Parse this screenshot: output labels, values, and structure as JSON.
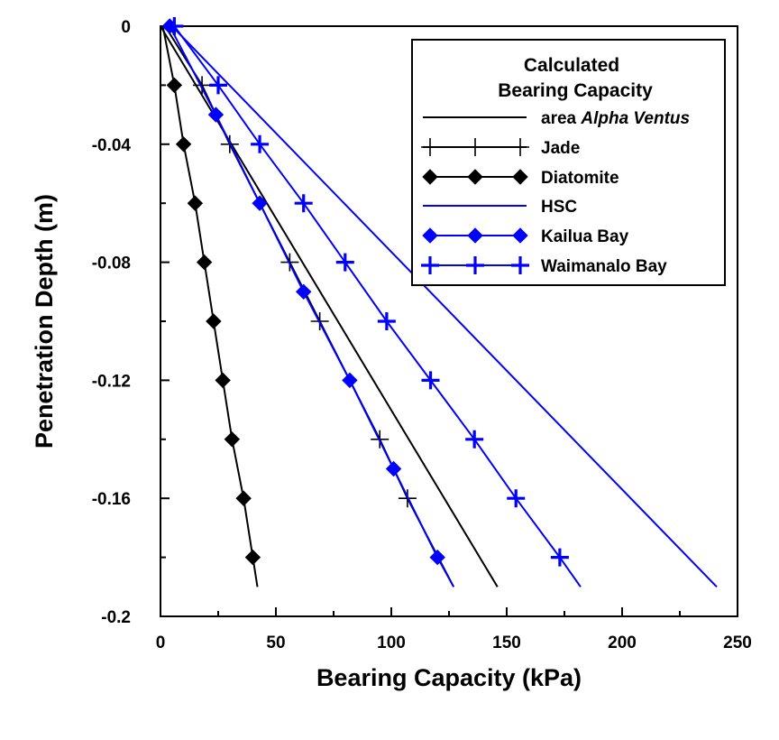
{
  "chart_data": {
    "type": "line",
    "xlabel": "Bearing Capacity (kPa)",
    "ylabel": "Penetration Depth (m)",
    "xlim": [
      0,
      250
    ],
    "ylim": [
      -0.2,
      0
    ],
    "x_ticks": [
      0,
      50,
      100,
      150,
      200,
      250
    ],
    "y_ticks": [
      0,
      -0.04,
      -0.08,
      -0.12,
      -0.16,
      -0.2
    ],
    "x_tick_labels": [
      "0",
      "50",
      "100",
      "150",
      "200",
      "250"
    ],
    "y_tick_labels": [
      "0",
      "-0.04",
      "-0.08",
      "-0.12",
      "-0.16",
      "-0.2"
    ],
    "legend": {
      "title_line1": "Calculated",
      "title_line2": "Bearing Capacity",
      "position": "top-right"
    },
    "series": [
      {
        "name": "area Alpha Ventus",
        "name_prefix": "area ",
        "name_emph": "Alpha Ventus",
        "color": "#000000",
        "marker": "none",
        "x": [
          0,
          146
        ],
        "y": [
          0,
          -0.19
        ]
      },
      {
        "name": "Jade",
        "color": "#000000",
        "marker": "plus",
        "x": [
          2,
          18,
          30,
          56,
          69,
          95,
          107,
          127
        ],
        "y": [
          0,
          -0.02,
          -0.04,
          -0.08,
          -0.1,
          -0.14,
          -0.16,
          -0.19
        ],
        "marked": [
          false,
          true,
          true,
          true,
          true,
          true,
          true,
          false
        ]
      },
      {
        "name": "Diatomite",
        "color": "#000000",
        "marker": "diamond",
        "x": [
          1,
          6,
          10,
          15,
          19,
          23,
          27,
          31,
          36,
          40,
          42
        ],
        "y": [
          0,
          -0.02,
          -0.04,
          -0.06,
          -0.08,
          -0.1,
          -0.12,
          -0.14,
          -0.16,
          -0.18,
          -0.19
        ],
        "marked": [
          false,
          true,
          true,
          true,
          true,
          true,
          true,
          true,
          true,
          true,
          false
        ]
      },
      {
        "name": "HSC",
        "color": "#0000ff",
        "marker": "none",
        "x": [
          5,
          241
        ],
        "y": [
          0,
          -0.19
        ]
      },
      {
        "name": "Kailua Bay",
        "color": "#0000ff",
        "marker": "diamond",
        "x": [
          4,
          24,
          43,
          62,
          82,
          101,
          120,
          127
        ],
        "y": [
          0,
          -0.03,
          -0.06,
          -0.09,
          -0.12,
          -0.15,
          -0.18,
          -0.19
        ],
        "marked": [
          true,
          true,
          true,
          true,
          true,
          true,
          true,
          false
        ]
      },
      {
        "name": "Waimanalo Bay",
        "color": "#0000ff",
        "marker": "plus",
        "x": [
          6,
          25,
          43,
          62,
          80,
          98,
          117,
          136,
          154,
          173,
          182
        ],
        "y": [
          0,
          -0.02,
          -0.04,
          -0.06,
          -0.08,
          -0.1,
          -0.12,
          -0.14,
          -0.16,
          -0.18,
          -0.19
        ],
        "marked": [
          true,
          true,
          true,
          true,
          true,
          true,
          true,
          true,
          true,
          true,
          false
        ]
      }
    ]
  }
}
